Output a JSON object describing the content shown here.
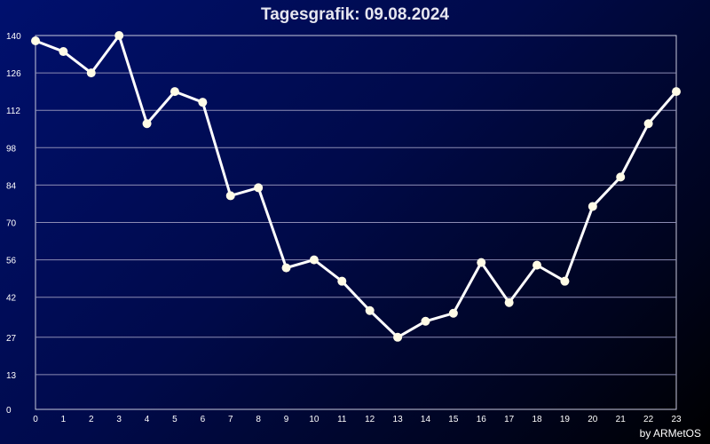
{
  "title": "Tagesgrafik: 09.08.2024",
  "credit": "by ARMetOS",
  "colors": {
    "background_start": "#00106e",
    "background_end": "#000000",
    "line": "#ffffff",
    "marker": "#fffbe6",
    "grid": "#8c8cb4"
  },
  "chart_data": {
    "type": "line",
    "title": "Tagesgrafik: 09.08.2024",
    "xlabel": "",
    "ylabel": "",
    "x": [
      0,
      1,
      2,
      3,
      4,
      5,
      6,
      7,
      8,
      9,
      10,
      11,
      12,
      13,
      14,
      15,
      16,
      17,
      18,
      19,
      20,
      21,
      22,
      23
    ],
    "series": [
      {
        "values": [
          138,
          134,
          126,
          140,
          107,
          119,
          115,
          80,
          83,
          53,
          56,
          48,
          37,
          27,
          33,
          36,
          55,
          40,
          54,
          48,
          76,
          87,
          107,
          119
        ]
      }
    ],
    "y_ticks": [
      0,
      13,
      27,
      42,
      56,
      70,
      84,
      98,
      112,
      126,
      140
    ],
    "x_ticks": [
      "0",
      "1",
      "2",
      "3",
      "4",
      "5",
      "6",
      "7",
      "8",
      "9",
      "10",
      "11",
      "12",
      "13",
      "14",
      "15",
      "16",
      "17",
      "18",
      "19",
      "20",
      "21",
      "22",
      "23"
    ],
    "ylim": [
      0,
      140
    ],
    "xlim": [
      0,
      23
    ],
    "grid": "horizontal",
    "legend": "none"
  }
}
